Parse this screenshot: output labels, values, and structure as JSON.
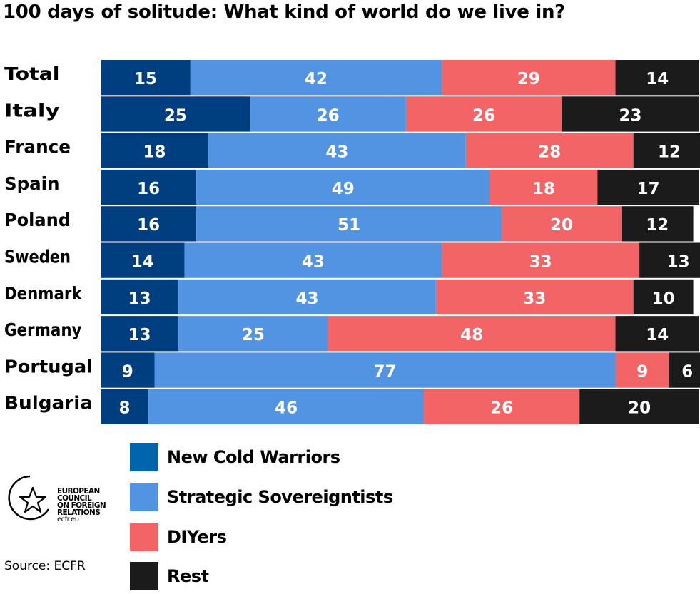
{
  "title": "100 days of solitude: What kind of world do we live in?",
  "colors": {
    "new_cold_warriors": "#003f7f",
    "strategic_sovereigntists": "#5294e2",
    "diyers": "#f26466",
    "rest": "#1b1b1b",
    "legend_new_cold_warriors": "#0065ac"
  },
  "chart_data": {
    "type": "bar",
    "orientation": "horizontal",
    "stacked": true,
    "categories": [
      "Total",
      "Italy",
      "France",
      "Spain",
      "Poland",
      "Sweden",
      "Denmark",
      "Germany",
      "Portugal",
      "Bulgaria"
    ],
    "series": [
      {
        "name": "New Cold Warriors",
        "values": [
          15,
          25,
          18,
          16,
          16,
          14,
          13,
          13,
          9,
          8
        ]
      },
      {
        "name": "Strategic Sovereigntists",
        "values": [
          42,
          26,
          43,
          49,
          51,
          43,
          43,
          25,
          77,
          46
        ]
      },
      {
        "name": "DIYers",
        "values": [
          29,
          26,
          28,
          18,
          20,
          33,
          33,
          48,
          9,
          26
        ]
      },
      {
        "name": "Rest",
        "values": [
          14,
          23,
          12,
          17,
          12,
          13,
          10,
          14,
          6,
          20
        ]
      }
    ],
    "xlim": [
      0,
      100
    ],
    "grid": false,
    "legend_position": "bottom"
  },
  "legend": [
    {
      "label": "New Cold Warriors",
      "color_key": "legend_new_cold_warriors"
    },
    {
      "label": "Strategic Sovereigntists",
      "color_key": "strategic_sovereigntists"
    },
    {
      "label": "DIYers",
      "color_key": "diyers"
    },
    {
      "label": "Rest",
      "color_key": "rest"
    }
  ],
  "org": {
    "lines": [
      "EUROPEAN",
      "COUNCIL",
      "ON FOREIGN",
      "RELATIONS"
    ],
    "url": "ecfr.eu",
    "logo_icon": "star-circle-icon"
  },
  "source": "Source: ECFR"
}
